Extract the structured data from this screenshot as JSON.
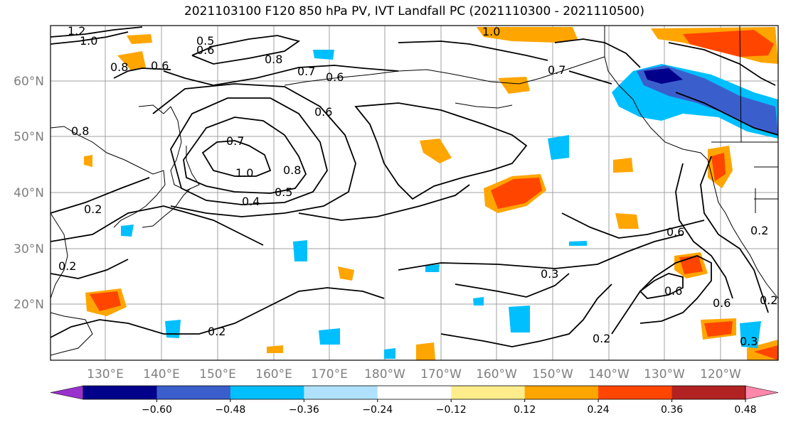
{
  "title": "2021103100 F120 850 hPa PV, IVT Landfall PC (2021110300 - 2021110500)",
  "lat_labels": [
    "60°N",
    "50°N",
    "40°N",
    "30°N",
    "20°N"
  ],
  "lon_labels": [
    "130°E",
    "140°E",
    "150°E",
    "160°E",
    "170°E",
    "180°W",
    "170°W",
    "160°W",
    "150°W",
    "140°W",
    "130°W",
    "120°W"
  ],
  "colorbar": {
    "ticks": [
      "−0.60",
      "−0.48",
      "−0.36",
      "−0.24",
      "−0.12",
      "0.12",
      "0.24",
      "0.36",
      "0.48",
      "0.60"
    ],
    "colors": [
      "#9932cc",
      "#00008b",
      "#3a5fcd",
      "#00bfff",
      "#b0e2ff",
      "#ffffff",
      "#ffec8b",
      "#ffa500",
      "#ff4500",
      "#b22222",
      "#ff88aa"
    ]
  },
  "contour_labels": [
    "1.2",
    "1.0",
    "0.5",
    "0.6",
    "0.8",
    "0.7",
    "0.6",
    "0.6",
    "0.8",
    "1.0",
    "0.7",
    "1.0",
    "0.8",
    "0.5",
    "0.4",
    "0.6",
    "0.3",
    "0.2",
    "0.2",
    "0.6",
    "0.6",
    "0.2",
    "0.3",
    "0.2",
    "0.7",
    "0.8",
    "0.6",
    "0.2",
    "0.2"
  ],
  "colors": {
    "grid": "#a0a0a0",
    "tick_label": "#7f7f7f",
    "contour": "#000000"
  }
}
